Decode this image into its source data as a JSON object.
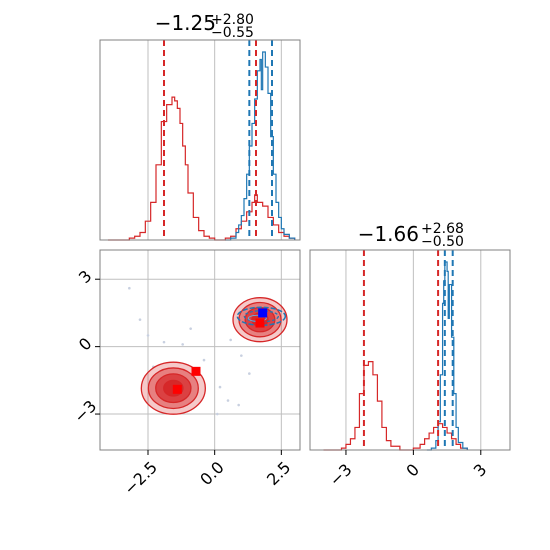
{
  "colors": {
    "red": "#d62728",
    "blue": "#1f77b4",
    "marker_red": "#ff0000",
    "marker_blue": "#0000ff",
    "grid": "#bfbfbf",
    "frame": "#808080"
  },
  "chart_data": [
    {
      "type": "histogram",
      "panel": "top-left",
      "title": {
        "main": "−1.25",
        "sup": "+2.80",
        "sub": "−0.55"
      },
      "xlim": [
        -4.3,
        3.2
      ],
      "grid": true,
      "vlines": {
        "red": [
          -1.9,
          1.55
        ],
        "blue": [
          1.3,
          2.15
        ]
      },
      "series": [
        {
          "color": "red",
          "points": [
            [
              -4.0,
              0
            ],
            [
              -3.4,
              0
            ],
            [
              -3.2,
              0.01
            ],
            [
              -3.0,
              0.02
            ],
            [
              -2.8,
              0.04
            ],
            [
              -2.6,
              0.1
            ],
            [
              -2.4,
              0.2
            ],
            [
              -2.2,
              0.4
            ],
            [
              -2.0,
              0.63
            ],
            [
              -1.8,
              0.72
            ],
            [
              -1.6,
              0.76
            ],
            [
              -1.5,
              0.74
            ],
            [
              -1.4,
              0.7
            ],
            [
              -1.3,
              0.62
            ],
            [
              -1.2,
              0.5
            ],
            [
              -1.1,
              0.4
            ],
            [
              -1.0,
              0.25
            ],
            [
              -0.8,
              0.12
            ],
            [
              -0.6,
              0.05
            ],
            [
              -0.4,
              0.02
            ],
            [
              -0.2,
              0.01
            ],
            [
              0.0,
              0
            ],
            [
              0.4,
              0.01
            ],
            [
              0.6,
              0.02
            ],
            [
              0.8,
              0.06
            ],
            [
              1.0,
              0.1
            ],
            [
              1.2,
              0.15
            ],
            [
              1.4,
              0.2
            ],
            [
              1.5,
              0.24
            ],
            [
              1.6,
              0.2
            ],
            [
              1.8,
              0.18
            ],
            [
              2.0,
              0.12
            ],
            [
              2.2,
              0.08
            ],
            [
              2.4,
              0.04
            ],
            [
              2.6,
              0.02
            ],
            [
              2.8,
              0.01
            ],
            [
              3.0,
              0
            ]
          ]
        },
        {
          "color": "blue",
          "points": [
            [
              0.4,
              0
            ],
            [
              0.6,
              0.01
            ],
            [
              0.8,
              0.04
            ],
            [
              0.9,
              0.08
            ],
            [
              1.0,
              0.13
            ],
            [
              1.1,
              0.22
            ],
            [
              1.2,
              0.35
            ],
            [
              1.3,
              0.5
            ],
            [
              1.4,
              0.62
            ],
            [
              1.5,
              0.75
            ],
            [
              1.6,
              0.9
            ],
            [
              1.7,
              0.96
            ],
            [
              1.75,
              0.8
            ],
            [
              1.8,
              1.0
            ],
            [
              1.9,
              0.92
            ],
            [
              2.0,
              0.78
            ],
            [
              2.1,
              0.55
            ],
            [
              2.2,
              0.35
            ],
            [
              2.3,
              0.2
            ],
            [
              2.4,
              0.12
            ],
            [
              2.5,
              0.06
            ],
            [
              2.6,
              0.03
            ],
            [
              2.8,
              0.01
            ],
            [
              3.0,
              0
            ]
          ]
        }
      ]
    },
    {
      "type": "contour",
      "panel": "bottom-left",
      "xlim": [
        -4.3,
        3.2
      ],
      "ylim": [
        -4.6,
        4.3
      ],
      "xticks": [
        -2.5,
        0.0,
        2.5
      ],
      "xticklabels": [
        "−2.5",
        "0.0",
        "2.5"
      ],
      "yticks": [
        -3,
        0,
        3
      ],
      "yticklabels": [
        "−3",
        "0",
        "3"
      ],
      "grid": true,
      "markers": [
        {
          "color": "marker_red",
          "x": -1.4,
          "y": -1.9
        },
        {
          "color": "marker_red",
          "x": -0.7,
          "y": -1.1
        },
        {
          "color": "marker_red",
          "x": 1.7,
          "y": 1.05
        },
        {
          "color": "marker_blue",
          "x": 1.8,
          "y": 1.5
        }
      ]
    },
    {
      "type": "histogram",
      "panel": "bottom-right",
      "title": {
        "main": "−1.66",
        "sup": "+2.68",
        "sub": "−0.50"
      },
      "xlim": [
        -4.6,
        4.3
      ],
      "xticks": [
        -3,
        0,
        3
      ],
      "xticklabels": [
        "−3",
        "0",
        "3"
      ],
      "grid": true,
      "vlines": {
        "red": [
          -2.2,
          1.1
        ],
        "blue": [
          1.4,
          1.75
        ]
      },
      "series": [
        {
          "color": "red",
          "points": [
            [
              -4.0,
              0
            ],
            [
              -3.5,
              0
            ],
            [
              -3.2,
              0.01
            ],
            [
              -3.0,
              0.03
            ],
            [
              -2.8,
              0.06
            ],
            [
              -2.6,
              0.12
            ],
            [
              -2.4,
              0.3
            ],
            [
              -2.2,
              0.45
            ],
            [
              -2.0,
              0.47
            ],
            [
              -1.8,
              0.4
            ],
            [
              -1.6,
              0.26
            ],
            [
              -1.4,
              0.12
            ],
            [
              -1.2,
              0.05
            ],
            [
              -1.0,
              0.02
            ],
            [
              -0.6,
              0
            ],
            [
              -0.2,
              0
            ],
            [
              0.0,
              0.01
            ],
            [
              0.3,
              0.03
            ],
            [
              0.5,
              0.06
            ],
            [
              0.7,
              0.09
            ],
            [
              0.9,
              0.12
            ],
            [
              1.1,
              0.14
            ],
            [
              1.3,
              0.12
            ],
            [
              1.5,
              0.09
            ],
            [
              1.7,
              0.06
            ],
            [
              1.9,
              0.03
            ],
            [
              2.1,
              0.01
            ],
            [
              2.4,
              0
            ]
          ]
        },
        {
          "color": "blue",
          "points": [
            [
              0.6,
              0
            ],
            [
              0.8,
              0.01
            ],
            [
              1.0,
              0.05
            ],
            [
              1.1,
              0.15
            ],
            [
              1.2,
              0.4
            ],
            [
              1.3,
              0.78
            ],
            [
              1.35,
              0.9
            ],
            [
              1.4,
              1.0
            ],
            [
              1.5,
              0.95
            ],
            [
              1.55,
              0.7
            ],
            [
              1.6,
              0.88
            ],
            [
              1.7,
              0.6
            ],
            [
              1.8,
              0.3
            ],
            [
              1.9,
              0.12
            ],
            [
              2.0,
              0.04
            ],
            [
              2.2,
              0.01
            ],
            [
              2.4,
              0
            ]
          ]
        }
      ]
    }
  ]
}
